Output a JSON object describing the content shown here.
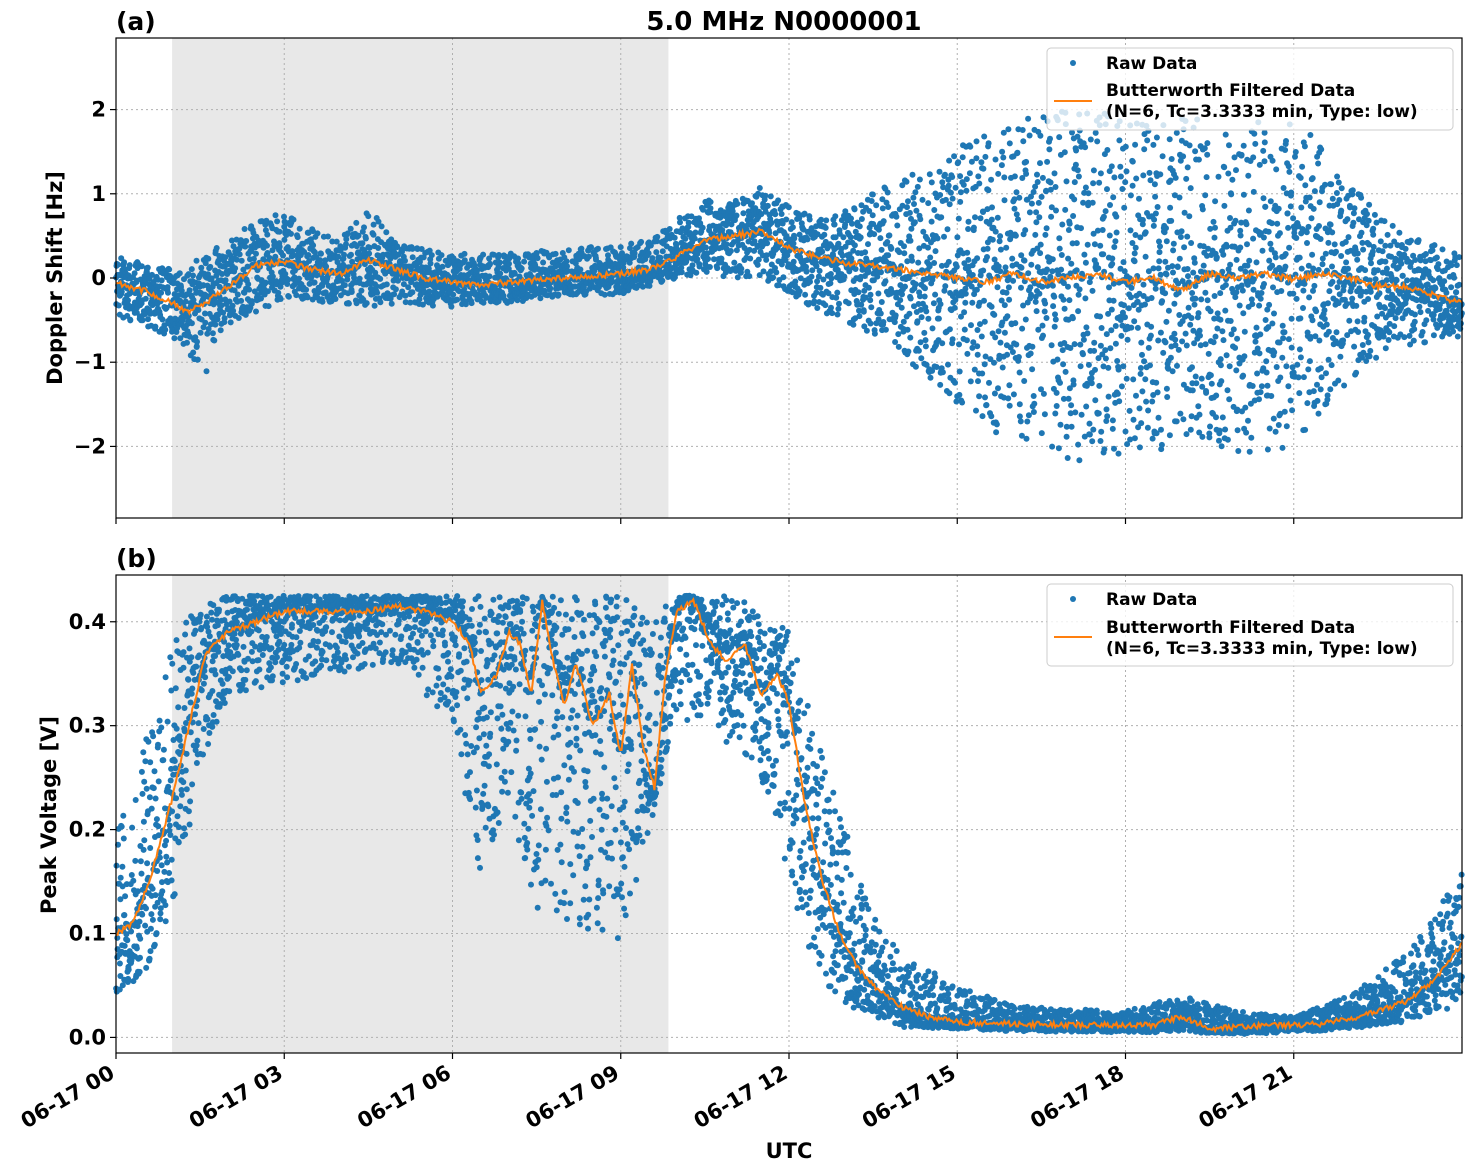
{
  "figure": {
    "title": "5.0 MHz N0000001",
    "xlabel": "UTC",
    "x_ticks": [
      "06-17 00",
      "06-17 03",
      "06-17 06",
      "06-17 09",
      "06-17 12",
      "06-17 15",
      "06-17 18",
      "06-17 21"
    ],
    "shaded_interval_hours": [
      1.0,
      9.85
    ],
    "colors": {
      "raw": "#1f77b4",
      "filtered": "#ff7f0e",
      "shade": "#e8e8e8",
      "grid": "#b0b0b0"
    }
  },
  "chart_data": [
    {
      "type": "scatter",
      "panel_label": "(a)",
      "ylabel": "Doppler Shift [Hz]",
      "xlim_hours": [
        0,
        24
      ],
      "ylim": [
        -2.85,
        2.85
      ],
      "y_ticks": [
        -2,
        -1,
        0,
        1,
        2
      ],
      "y_tick_labels": [
        "−2",
        "−1",
        "0",
        "1",
        "2"
      ],
      "grid": true,
      "legend_placement": "top-right",
      "legend": [
        "Raw Data",
        "Butterworth Filtered Data",
        "(N=6, Tc=3.3333 min, Type: low)"
      ],
      "series": [
        {
          "name": "Butterworth Filtered Data",
          "kind": "line",
          "x_hours": [
            0,
            0.5,
            1,
            1.3,
            1.6,
            2,
            2.5,
            3,
            3.5,
            4,
            4.5,
            5,
            5.5,
            6,
            6.5,
            7,
            8,
            9,
            9.5,
            10,
            10.5,
            11,
            11.5,
            12,
            12.5,
            13,
            13.5,
            14,
            14.5,
            15,
            15.5,
            16,
            16.5,
            17,
            17.5,
            18,
            18.5,
            19,
            19.5,
            20,
            20.5,
            21,
            21.5,
            22,
            22.5,
            23,
            23.5,
            24
          ],
          "y": [
            -0.05,
            -0.15,
            -0.3,
            -0.4,
            -0.3,
            -0.1,
            0.15,
            0.2,
            0.1,
            0.05,
            0.22,
            0.1,
            0.0,
            -0.05,
            -0.08,
            -0.05,
            0.0,
            0.05,
            0.1,
            0.25,
            0.45,
            0.5,
            0.55,
            0.35,
            0.25,
            0.18,
            0.15,
            0.1,
            0.05,
            0.0,
            -0.05,
            0.05,
            -0.05,
            0.0,
            0.05,
            -0.05,
            0.0,
            -0.15,
            0.05,
            0.0,
            0.05,
            -0.02,
            0.05,
            0.0,
            -0.1,
            -0.1,
            -0.2,
            -0.3
          ]
        },
        {
          "name": "Raw Data",
          "kind": "scatter_envelope",
          "x_hours": [
            0,
            1,
            1.6,
            2,
            3,
            4,
            4.5,
            5,
            6,
            7,
            8,
            9,
            9.5,
            10,
            10.5,
            11,
            11.5,
            12,
            12.5,
            13,
            14,
            14.5,
            15,
            15.5,
            16,
            17,
            18,
            19,
            20,
            21,
            21.5,
            22,
            23,
            24
          ],
          "upper": [
            0.25,
            0.1,
            0.25,
            0.5,
            0.8,
            0.45,
            0.85,
            0.4,
            0.3,
            0.3,
            0.35,
            0.4,
            0.45,
            0.7,
            0.95,
            0.9,
            1.1,
            0.85,
            0.7,
            0.8,
            1.2,
            1.3,
            1.6,
            1.7,
            1.9,
            2.0,
            1.95,
            1.9,
            1.9,
            1.85,
            1.6,
            1.1,
            0.5,
            0.3
          ],
          "lower": [
            -0.45,
            -0.7,
            -1.15,
            -0.55,
            -0.25,
            -0.3,
            -0.35,
            -0.3,
            -0.35,
            -0.3,
            -0.2,
            -0.2,
            -0.1,
            0.0,
            0.05,
            0.0,
            0.0,
            -0.2,
            -0.4,
            -0.5,
            -0.9,
            -1.2,
            -1.5,
            -1.8,
            -2.0,
            -2.2,
            -2.1,
            -2.0,
            -2.1,
            -2.0,
            -1.6,
            -1.2,
            -0.8,
            -0.7
          ]
        }
      ]
    },
    {
      "type": "scatter",
      "panel_label": "(b)",
      "ylabel": "Peak Voltage [V]",
      "xlim_hours": [
        0,
        24
      ],
      "ylim": [
        -0.015,
        0.445
      ],
      "y_ticks": [
        0.0,
        0.1,
        0.2,
        0.3,
        0.4
      ],
      "y_tick_labels": [
        "0.0",
        "0.1",
        "0.2",
        "0.3",
        "0.4"
      ],
      "grid": true,
      "legend_placement": "top-right",
      "legend": [
        "Raw Data",
        "Butterworth Filtered Data",
        "(N=6, Tc=3.3333 min, Type: low)"
      ],
      "series": [
        {
          "name": "Butterworth Filtered Data",
          "kind": "line",
          "x_hours": [
            0,
            0.3,
            0.6,
            1,
            1.3,
            1.6,
            2,
            2.5,
            3,
            3.5,
            4,
            4.5,
            5,
            5.5,
            6,
            6.3,
            6.5,
            6.8,
            7,
            7.2,
            7.4,
            7.6,
            7.8,
            8,
            8.2,
            8.5,
            8.8,
            9.0,
            9.2,
            9.4,
            9.6,
            9.8,
            10,
            10.3,
            10.6,
            10.9,
            11.2,
            11.5,
            11.8,
            12,
            12.3,
            12.6,
            12.9,
            13.2,
            13.5,
            14,
            14.5,
            15,
            16,
            17,
            18,
            18.5,
            19,
            19.2,
            19.5,
            20,
            21,
            21.5,
            22,
            22.5,
            23,
            23.5,
            24
          ],
          "y": [
            0.1,
            0.11,
            0.15,
            0.23,
            0.3,
            0.37,
            0.39,
            0.4,
            0.41,
            0.41,
            0.41,
            0.41,
            0.415,
            0.41,
            0.4,
            0.38,
            0.33,
            0.35,
            0.39,
            0.38,
            0.33,
            0.42,
            0.36,
            0.32,
            0.36,
            0.3,
            0.33,
            0.27,
            0.36,
            0.28,
            0.24,
            0.35,
            0.41,
            0.42,
            0.38,
            0.36,
            0.38,
            0.33,
            0.35,
            0.32,
            0.22,
            0.15,
            0.1,
            0.07,
            0.05,
            0.03,
            0.02,
            0.015,
            0.013,
            0.012,
            0.012,
            0.012,
            0.02,
            0.016,
            0.008,
            0.01,
            0.012,
            0.013,
            0.018,
            0.025,
            0.035,
            0.055,
            0.09
          ]
        },
        {
          "name": "Raw Data",
          "kind": "scatter_envelope",
          "x_hours": [
            0,
            0.5,
            1,
            1.5,
            2,
            3,
            4,
            5,
            6,
            6.5,
            7,
            7.5,
            8,
            8.5,
            9,
            9.5,
            10,
            11,
            11.5,
            12,
            12.5,
            13,
            13.5,
            14,
            15,
            16,
            18,
            19,
            20,
            21,
            22,
            23,
            24
          ],
          "upper": [
            0.2,
            0.3,
            0.38,
            0.42,
            0.425,
            0.425,
            0.425,
            0.425,
            0.425,
            0.425,
            0.425,
            0.425,
            0.425,
            0.425,
            0.425,
            0.42,
            0.425,
            0.425,
            0.41,
            0.39,
            0.3,
            0.2,
            0.12,
            0.08,
            0.05,
            0.03,
            0.025,
            0.04,
            0.025,
            0.02,
            0.04,
            0.08,
            0.16
          ],
          "lower": [
            0.04,
            0.06,
            0.12,
            0.25,
            0.33,
            0.34,
            0.35,
            0.36,
            0.3,
            0.15,
            0.22,
            0.12,
            0.1,
            0.1,
            0.09,
            0.2,
            0.3,
            0.28,
            0.25,
            0.15,
            0.06,
            0.03,
            0.02,
            0.01,
            0.008,
            0.006,
            0.005,
            0.005,
            0.003,
            0.005,
            0.008,
            0.015,
            0.03
          ]
        }
      ]
    }
  ]
}
